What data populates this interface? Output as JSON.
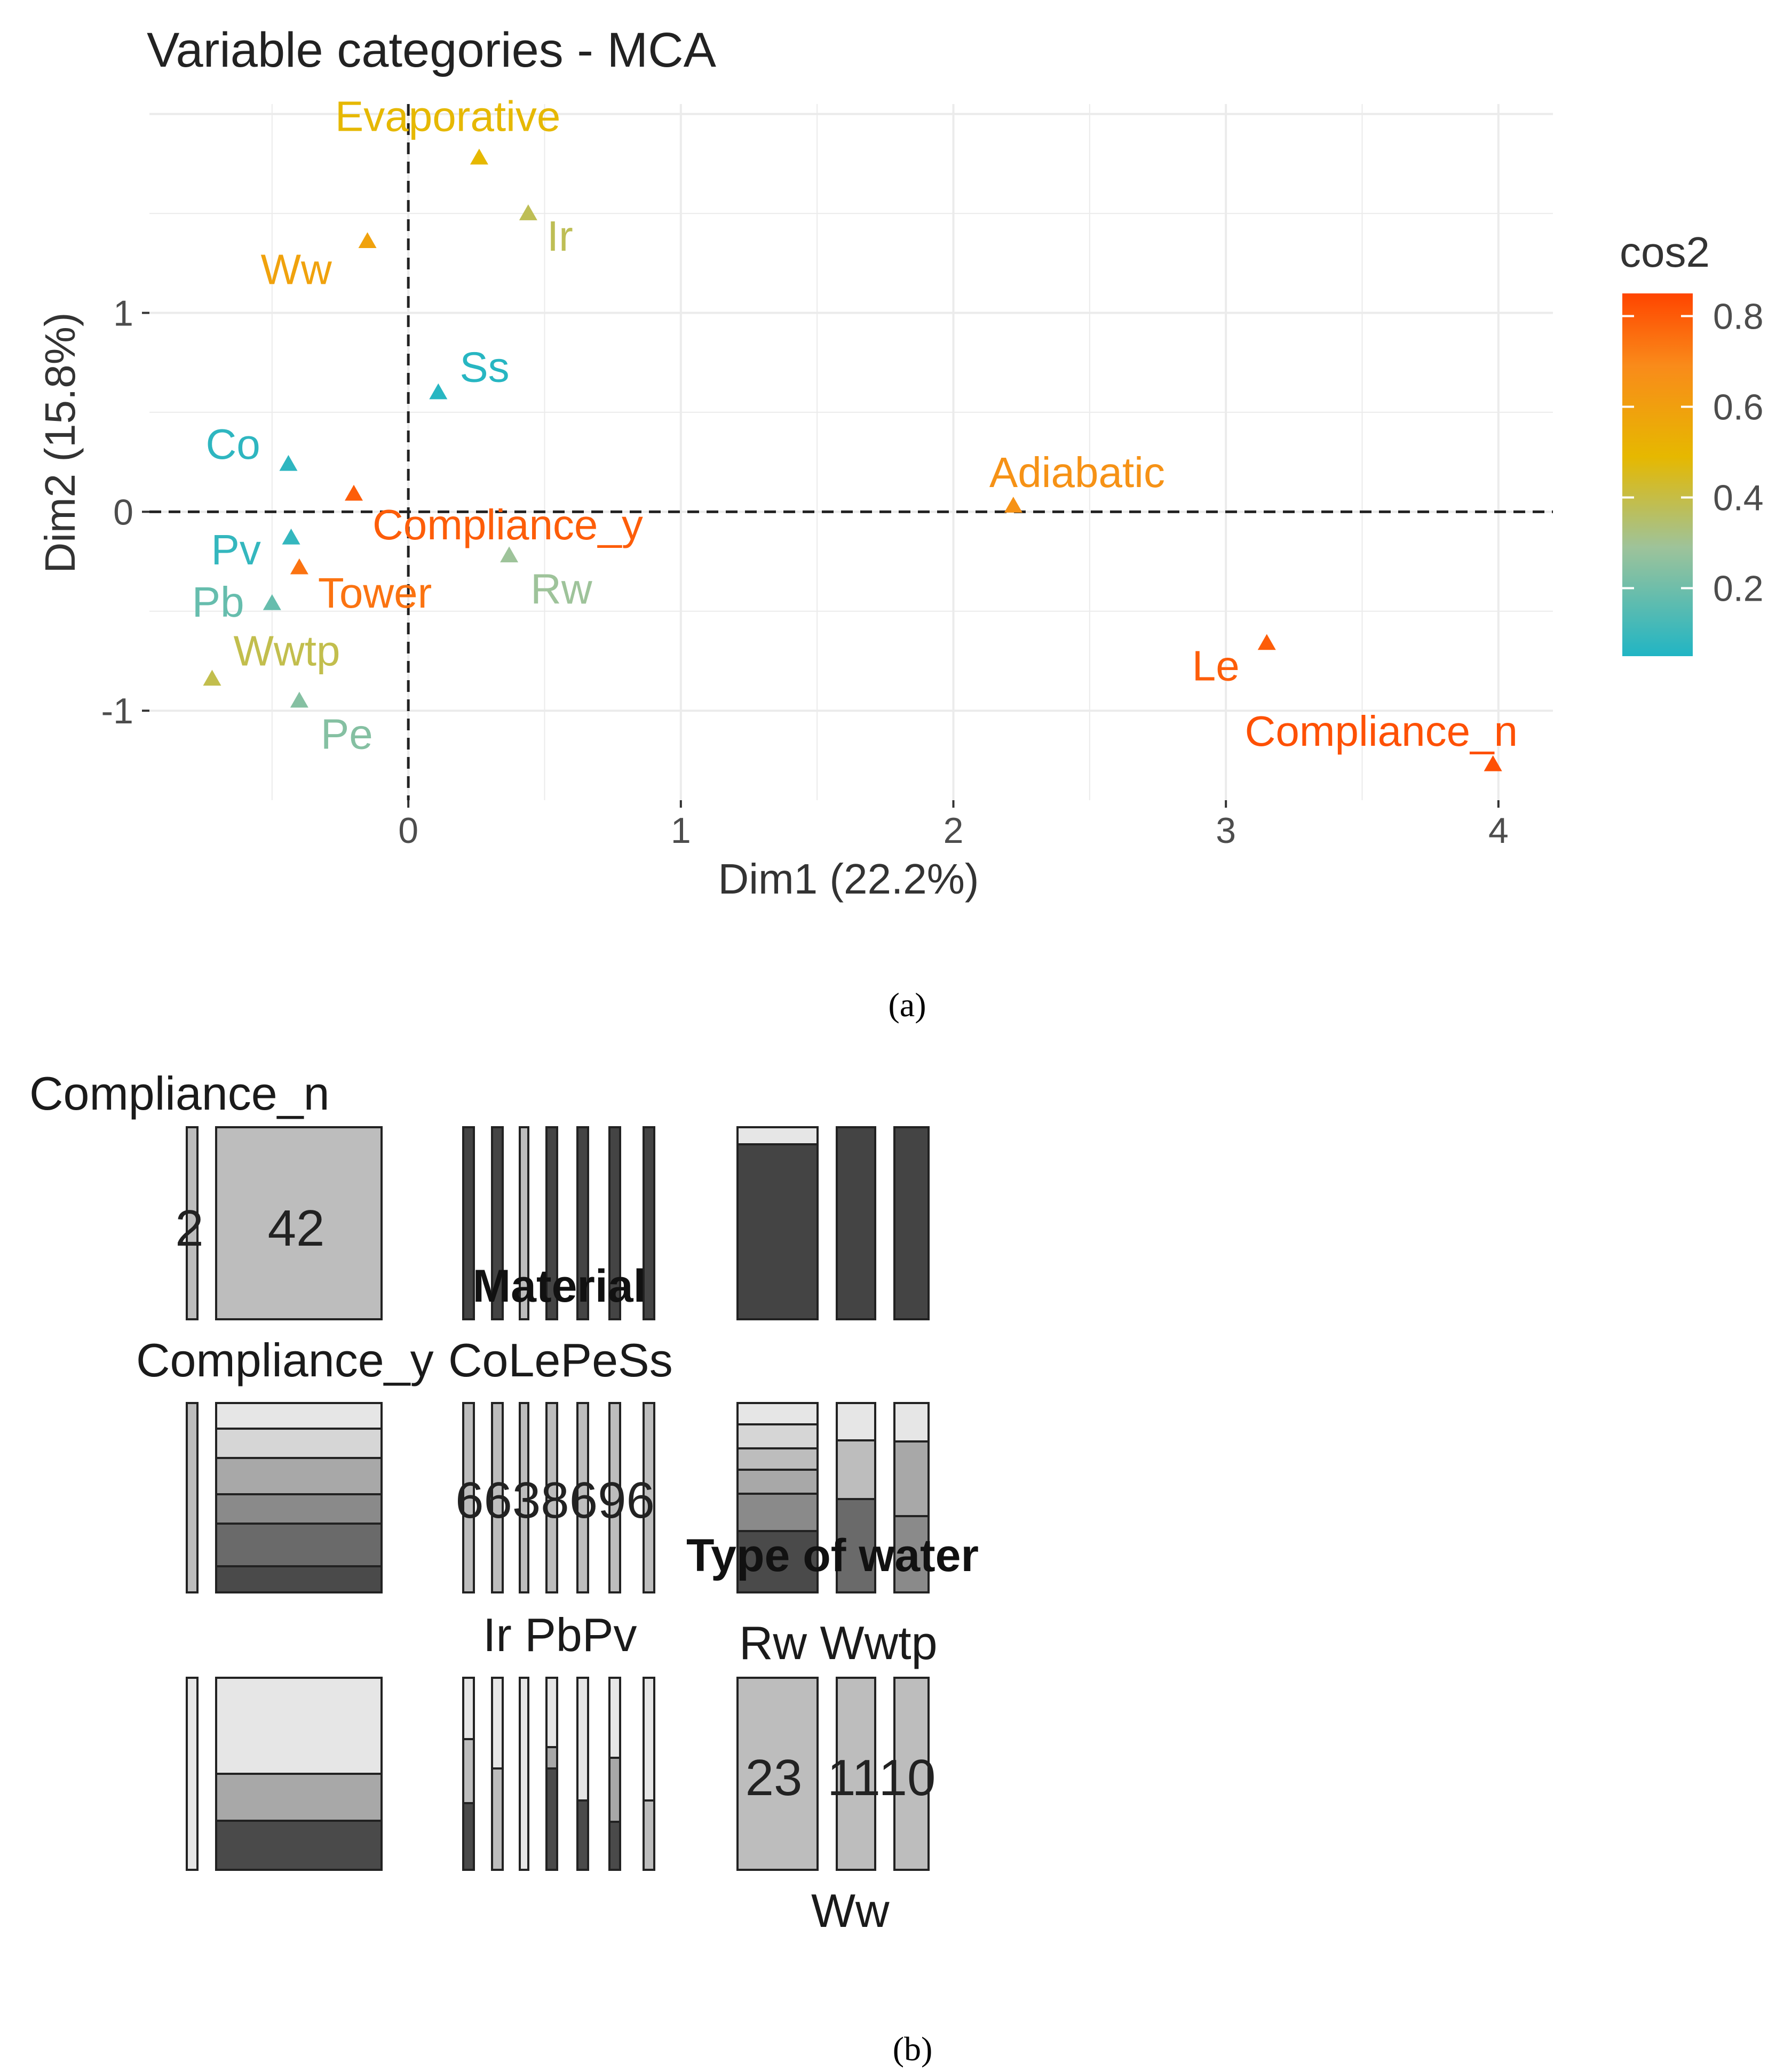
{
  "panel_a": {
    "caption": "(a)",
    "chart_data": {
      "type": "scatter",
      "title": "Variable categories - MCA",
      "xlabel": "Dim1 (22.2%)",
      "ylabel": "Dim2 (15.8%)",
      "xlim": [
        -0.95,
        4.2
      ],
      "ylim": [
        -1.45,
        2.05
      ],
      "xticks": [
        0,
        1,
        2,
        3,
        4
      ],
      "yticks": [
        -1,
        0,
        1
      ],
      "grid": true,
      "reference_lines": {
        "x": 0,
        "y": 0
      },
      "legend": {
        "title": "cos2",
        "placement": "right",
        "ticks": [
          0.2,
          0.4,
          0.6,
          0.8
        ],
        "range": [
          0.05,
          0.85
        ],
        "colors": [
          "#21B5C4",
          "#9EC39A",
          "#E6B800",
          "#F98B1A",
          "#FF4500"
        ]
      },
      "points": [
        {
          "label": "",
          "x": 0.26,
          "y": 1.78,
          "cos2": 0.45
        },
        {
          "label": "Evaporative",
          "x": 0.26,
          "y": 1.78,
          "cos2": 0.45,
          "hidden": true
        },
        {
          "label": "Ir",
          "x": 0.44,
          "y": 1.5,
          "cos2": 0.34
        },
        {
          "label": "Ww",
          "x": -0.15,
          "y": 1.36,
          "cos2": 0.55
        },
        {
          "label": "Ss",
          "x": 0.11,
          "y": 0.6,
          "cos2": 0.06
        },
        {
          "label": "Co",
          "x": -0.44,
          "y": 0.24,
          "cos2": 0.07
        },
        {
          "label": "Compliance_y",
          "x": -0.2,
          "y": 0.09,
          "cos2": 0.78
        },
        {
          "label": "Adiabatic",
          "x": 2.22,
          "y": 0.03,
          "cos2": 0.62
        },
        {
          "label": "Pv",
          "x": -0.43,
          "y": -0.13,
          "cos2": 0.08
        },
        {
          "label": "Rw",
          "x": 0.37,
          "y": -0.22,
          "cos2": 0.25
        },
        {
          "label": "Tower",
          "x": -0.4,
          "y": -0.28,
          "cos2": 0.72
        },
        {
          "label": "Pb",
          "x": -0.5,
          "y": -0.46,
          "cos2": 0.16
        },
        {
          "label": "Wwtp",
          "x": -0.72,
          "y": -0.84,
          "cos2": 0.35
        },
        {
          "label": "Pe",
          "x": -0.4,
          "y": -0.95,
          "cos2": 0.21
        },
        {
          "label": "Le",
          "x": 3.15,
          "y": -0.66,
          "cos2": 0.78
        },
        {
          "label": "Compliance_n",
          "x": 3.98,
          "y": -1.27,
          "cos2": 0.82
        }
      ]
    }
  },
  "panel_b": {
    "caption": "(b)",
    "labels": {
      "compliance_n": "Compliance_n",
      "compliance_y": "Compliance_y",
      "material": "Material",
      "material_top": "CoLePeSs",
      "material_bottom": "Ir PbPv",
      "type_water": "Type of water",
      "type_top": "Rw  Wwtp",
      "type_bottom": "Ww"
    },
    "chart_data": {
      "type": "mosaic-pairs",
      "counts": {
        "compliance": [
          "2",
          "42"
        ],
        "material": "6638696",
        "type_of_water": [
          "23",
          "11",
          "10"
        ]
      }
    }
  }
}
